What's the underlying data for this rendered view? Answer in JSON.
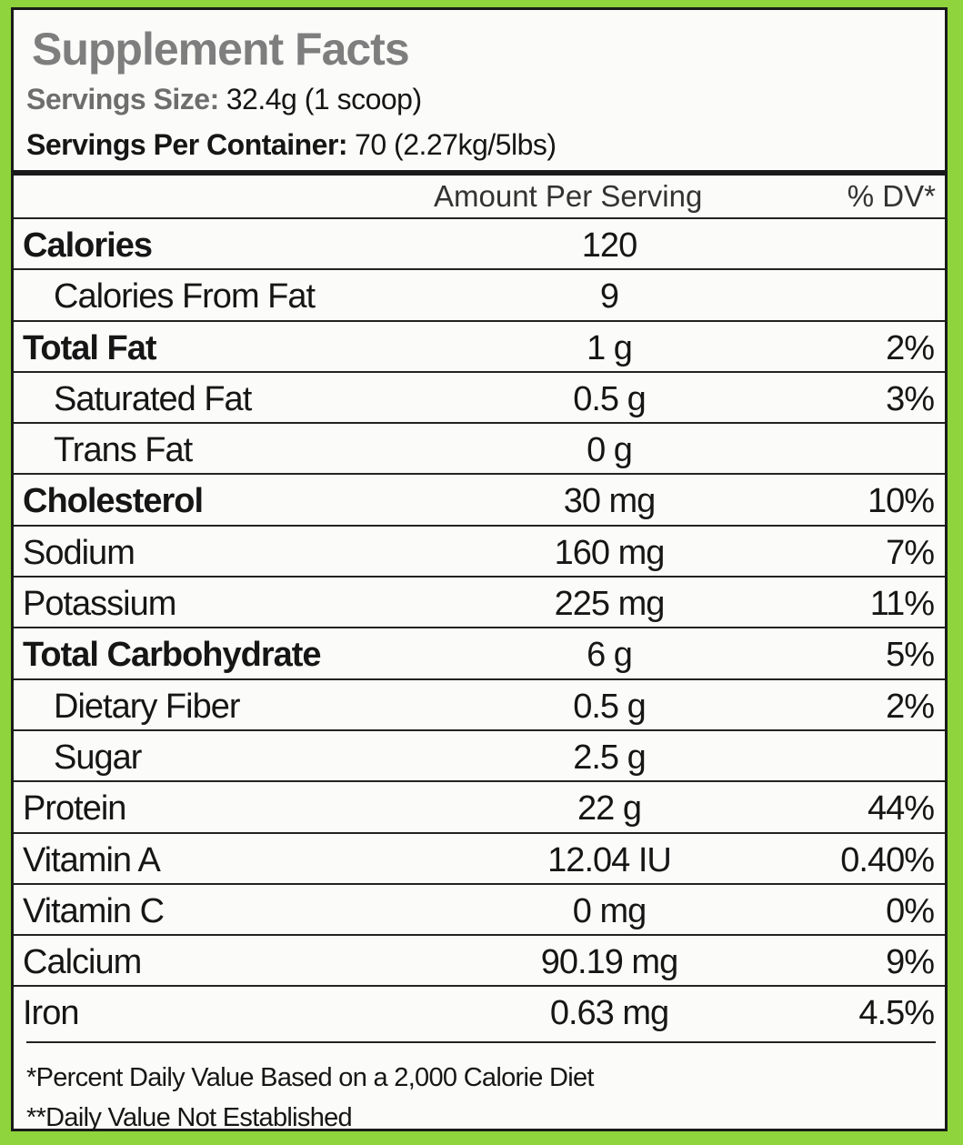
{
  "title": "Supplement Facts",
  "serving_size": {
    "label": "Servings Size:",
    "value": "32.4g (1 scoop)"
  },
  "servings_per_container": {
    "label": "Servings Per Container:",
    "value": "70 (2.27kg/5lbs)"
  },
  "table": {
    "header": {
      "amount": "Amount Per Serving",
      "dv": "% DV*"
    },
    "rows": [
      {
        "name": "Calories",
        "amount": "120"
      },
      {
        "name": "Calories From Fat",
        "amount": "9"
      },
      {
        "name": "Total Fat",
        "amount": "1 g",
        "dv": "2%"
      },
      {
        "name": "Saturated Fat",
        "amount": "0.5 g",
        "dv": "3%"
      },
      {
        "name": "Trans Fat",
        "amount": "0 g"
      },
      {
        "name": "Cholesterol",
        "amount": "30 mg",
        "dv": "10%"
      },
      {
        "name": "Sodium",
        "amount": "160 mg",
        "dv": "7%"
      },
      {
        "name": "Potassium",
        "amount": "225 mg",
        "dv": "11%"
      },
      {
        "name": "Total Carbohydrate",
        "amount": "6 g",
        "dv": "5%"
      },
      {
        "name": "Dietary Fiber",
        "amount": "0.5 g",
        "dv": "2%"
      },
      {
        "name": "Sugar",
        "amount": "2.5 g"
      },
      {
        "name": "Protein",
        "amount": "22 g",
        "dv": "44%"
      },
      {
        "name": "Vitamin A",
        "amount": "12.04 IU",
        "dv": "0.40%"
      },
      {
        "name": "Vitamin C",
        "amount": "0 mg",
        "dv": "0%"
      },
      {
        "name": "Calcium",
        "amount": "90.19 mg",
        "dv": "9%"
      },
      {
        "name": "Iron",
        "amount": "0.63 mg",
        "dv": "4.5%"
      }
    ]
  },
  "footnotes": [
    "*Percent Daily Value Based on a 2,000 Calorie Diet",
    "**Daily Value Not Established"
  ]
}
